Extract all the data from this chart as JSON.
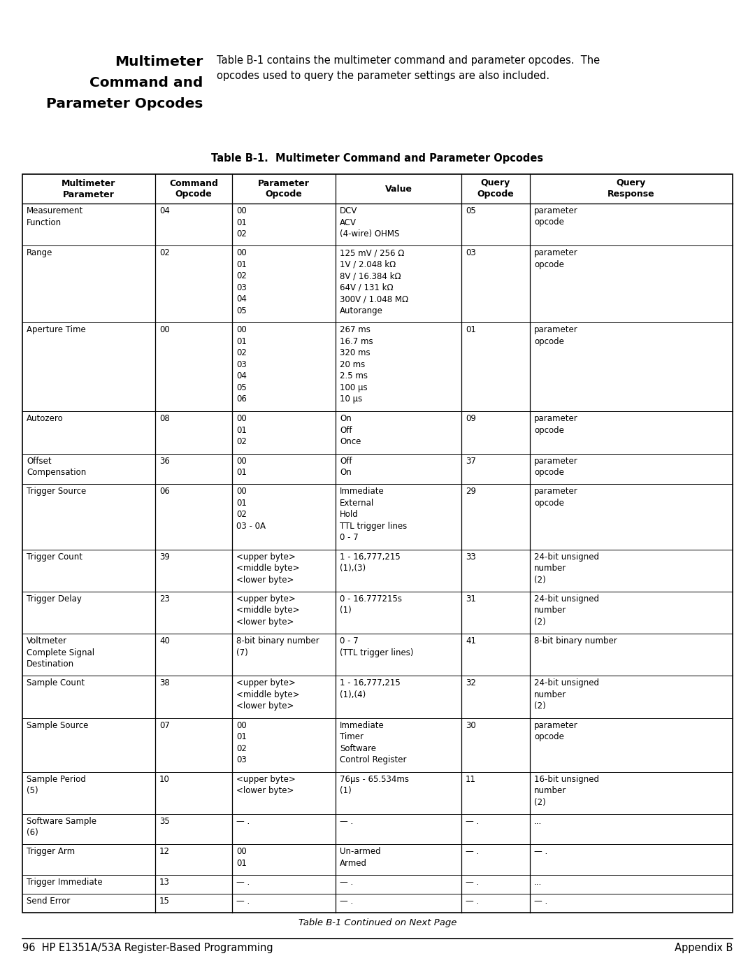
{
  "page_title_lines": [
    "Multimeter",
    "Command and",
    "Parameter Opcodes"
  ],
  "page_desc_line1": "Table B-1 contains the multimeter command and parameter opcodes.  The",
  "page_desc_line2": "opcodes used to query the parameter settings are also included.",
  "table_title": "Table B-1.  Multimeter Command and Parameter Opcodes",
  "footer_left": "96  HP E1351A/53A Register-Based Programming",
  "footer_right": "Appendix B",
  "col_headers": [
    "Multimeter\nParameter",
    "Command\nOpcode",
    "Parameter\nOpcode",
    "Value",
    "Query\nOpcode",
    "Query\nResponse"
  ],
  "rows": [
    {
      "param": "Measurement\nFunction",
      "cmd": "04",
      "param_opcode": "00\n01\n02",
      "value": "DCV\nACV\n(4-wire) OHMS",
      "query_opcode": "05",
      "query_response": "parameter\nopcode"
    },
    {
      "param": "Range",
      "cmd": "02",
      "param_opcode": "00\n01\n02\n03\n04\n05",
      "value": "125 mV / 256 Ω\n1V / 2.048 kΩ\n8V / 16.384 kΩ\n64V / 131 kΩ\n300V / 1.048 MΩ\nAutorange",
      "query_opcode": "03",
      "query_response": "parameter\nopcode"
    },
    {
      "param": "Aperture Time",
      "cmd": "00",
      "param_opcode": "00\n01\n02\n03\n04\n05\n06",
      "value": "267 ms\n16.7 ms\n320 ms\n20 ms\n2.5 ms\n100 μs\n10 μs",
      "query_opcode": "01",
      "query_response": "parameter\nopcode"
    },
    {
      "param": "Autozero",
      "cmd": "08",
      "param_opcode": "00\n01\n02",
      "value": "On\nOff\nOnce",
      "query_opcode": "09",
      "query_response": "parameter\nopcode"
    },
    {
      "param": "Offset\nCompensation",
      "cmd": "36",
      "param_opcode": "00\n01",
      "value": "Off\nOn",
      "query_opcode": "37",
      "query_response": "parameter\nopcode"
    },
    {
      "param": "Trigger Source",
      "cmd": "06",
      "param_opcode": "00\n01\n02\n03 - 0A",
      "value": "Immediate\nExternal\nHold\nTTL trigger lines\n0 - 7",
      "query_opcode": "29",
      "query_response": "parameter\nopcode"
    },
    {
      "param": "Trigger Count",
      "cmd": "39",
      "param_opcode": "<upper byte>\n<middle byte>\n<lower byte>",
      "value": "1 - 16,777,215\n(1),(3)",
      "query_opcode": "33",
      "query_response": "24-bit unsigned\nnumber\n(2)"
    },
    {
      "param": "Trigger Delay",
      "cmd": "23",
      "param_opcode": "<upper byte>\n<middle byte>\n<lower byte>",
      "value": "0 - 16.777215s\n(1)",
      "query_opcode": "31",
      "query_response": "24-bit unsigned\nnumber\n(2)"
    },
    {
      "param": "Voltmeter\nComplete Signal\nDestination",
      "cmd": "40",
      "param_opcode": "8-bit binary number\n(7)",
      "value": "0 - 7\n(TTL trigger lines)",
      "query_opcode": "41",
      "query_response": "8-bit binary number"
    },
    {
      "param": "Sample Count",
      "cmd": "38",
      "param_opcode": "<upper byte>\n<middle byte>\n<lower byte>",
      "value": "1 - 16,777,215\n(1),(4)",
      "query_opcode": "32",
      "query_response": "24-bit unsigned\nnumber\n(2)"
    },
    {
      "param": "Sample Source",
      "cmd": "07",
      "param_opcode": "00\n01\n02\n03",
      "value": "Immediate\nTimer\nSoftware\nControl Register",
      "query_opcode": "30",
      "query_response": "parameter\nopcode"
    },
    {
      "param": "Sample Period\n(5)",
      "cmd": "10",
      "param_opcode": "<upper byte>\n<lower byte>",
      "value": "76μs - 65.534ms\n(1)",
      "query_opcode": "11",
      "query_response": "16-bit unsigned\nnumber\n(2)"
    },
    {
      "param": "Software Sample\n(6)",
      "cmd": "35",
      "param_opcode": "— .",
      "value": "— .",
      "query_opcode": "— .",
      "query_response": "..."
    },
    {
      "param": "Trigger Arm",
      "cmd": "12",
      "param_opcode": "00\n01",
      "value": "Un-armed\nArmed",
      "query_opcode": "— .",
      "query_response": "— ."
    },
    {
      "param": "Trigger Immediate",
      "cmd": "13",
      "param_opcode": "— .",
      "value": "— .",
      "query_opcode": "— .",
      "query_response": "..."
    },
    {
      "param": "Send Error",
      "cmd": "15",
      "param_opcode": "— .",
      "value": "— .",
      "query_opcode": "— .",
      "query_response": "— ."
    }
  ],
  "continued_note": "Table B-1 Continued on Next Page",
  "bg_color": "#ffffff",
  "line_color": "#000000",
  "text_color": "#000000",
  "fs_body": 8.5,
  "fs_header": 9.0,
  "fs_title": 10.5,
  "fs_page_title": 14.5,
  "fs_page_desc": 10.5,
  "fs_footer": 10.5,
  "fs_continued": 9.5
}
